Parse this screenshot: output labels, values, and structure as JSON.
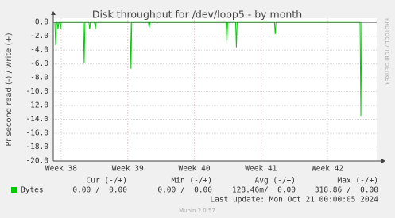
{
  "chart_data": {
    "type": "line",
    "title": "Disk throughput for /dev/loop5 - by month",
    "y_label": "Pr second read (-) / write (+)",
    "side_label": "RRDTOOL / TOBI OETIKER",
    "x": [
      0.17,
      0.25,
      0.33,
      0.42,
      0.5,
      0.58,
      0.67,
      0.75,
      0.83,
      3.17,
      3.25,
      3.33,
      3.75,
      3.83,
      3.91,
      4.34,
      4.42,
      4.5,
      8.09,
      8.17,
      8.25,
      10.0,
      10.08,
      10.16,
      18.17,
      18.25,
      18.33,
      19.17,
      19.25,
      19.33,
      23.25,
      23.33,
      23.41,
      32.25,
      32.33,
      32.41
    ],
    "series": [
      {
        "name": "Bytes",
        "color": "#00cc00",
        "values": [
          0,
          -3.3,
          0,
          0,
          -1,
          0,
          0,
          -1,
          0,
          0,
          -5.9,
          0,
          0,
          -1,
          0,
          0,
          -1,
          0,
          0,
          -6.7,
          0,
          0,
          -0.8,
          0,
          0,
          -3,
          0,
          0,
          -3.6,
          0,
          0,
          -1.7,
          0,
          0,
          -13.5,
          0
        ]
      }
    ],
    "xlim": [
      0,
      34
    ],
    "xticks": [
      {
        "value": 0.83,
        "label": "Week 38"
      },
      {
        "value": 7.83,
        "label": "Week 39"
      },
      {
        "value": 14.83,
        "label": "Week 40"
      },
      {
        "value": 21.83,
        "label": "Week 41"
      },
      {
        "value": 28.83,
        "label": "Week 42"
      }
    ],
    "ylim": [
      -20,
      0.6
    ],
    "yticks": [
      {
        "value": 0,
        "label": "0.0"
      },
      {
        "value": -2,
        "label": "-2.0"
      },
      {
        "value": -4,
        "label": "-4.0"
      },
      {
        "value": -6,
        "label": "-6.0"
      },
      {
        "value": -8,
        "label": "-8.0"
      },
      {
        "value": -10,
        "label": "-10.0"
      },
      {
        "value": -12,
        "label": "-12.0"
      },
      {
        "value": -14,
        "label": "-14.0"
      },
      {
        "value": -16,
        "label": "-16.0"
      },
      {
        "value": -18,
        "label": "-18.0"
      },
      {
        "value": -20,
        "label": "-20.0"
      }
    ],
    "grid": true,
    "legend_table": {
      "headers": [
        "Cur (-/+)",
        "Min (-/+)",
        "Avg (-/+)",
        "Max (-/+)"
      ],
      "cells": [
        "0.00 /  0.00",
        "0.00 /  0.00",
        "128.46m/  0.00",
        "318.86 /  0.00"
      ]
    },
    "last_update": "Last update: Mon Oct 21 00:00:05 2024",
    "footer": "Munin 2.0.57"
  }
}
